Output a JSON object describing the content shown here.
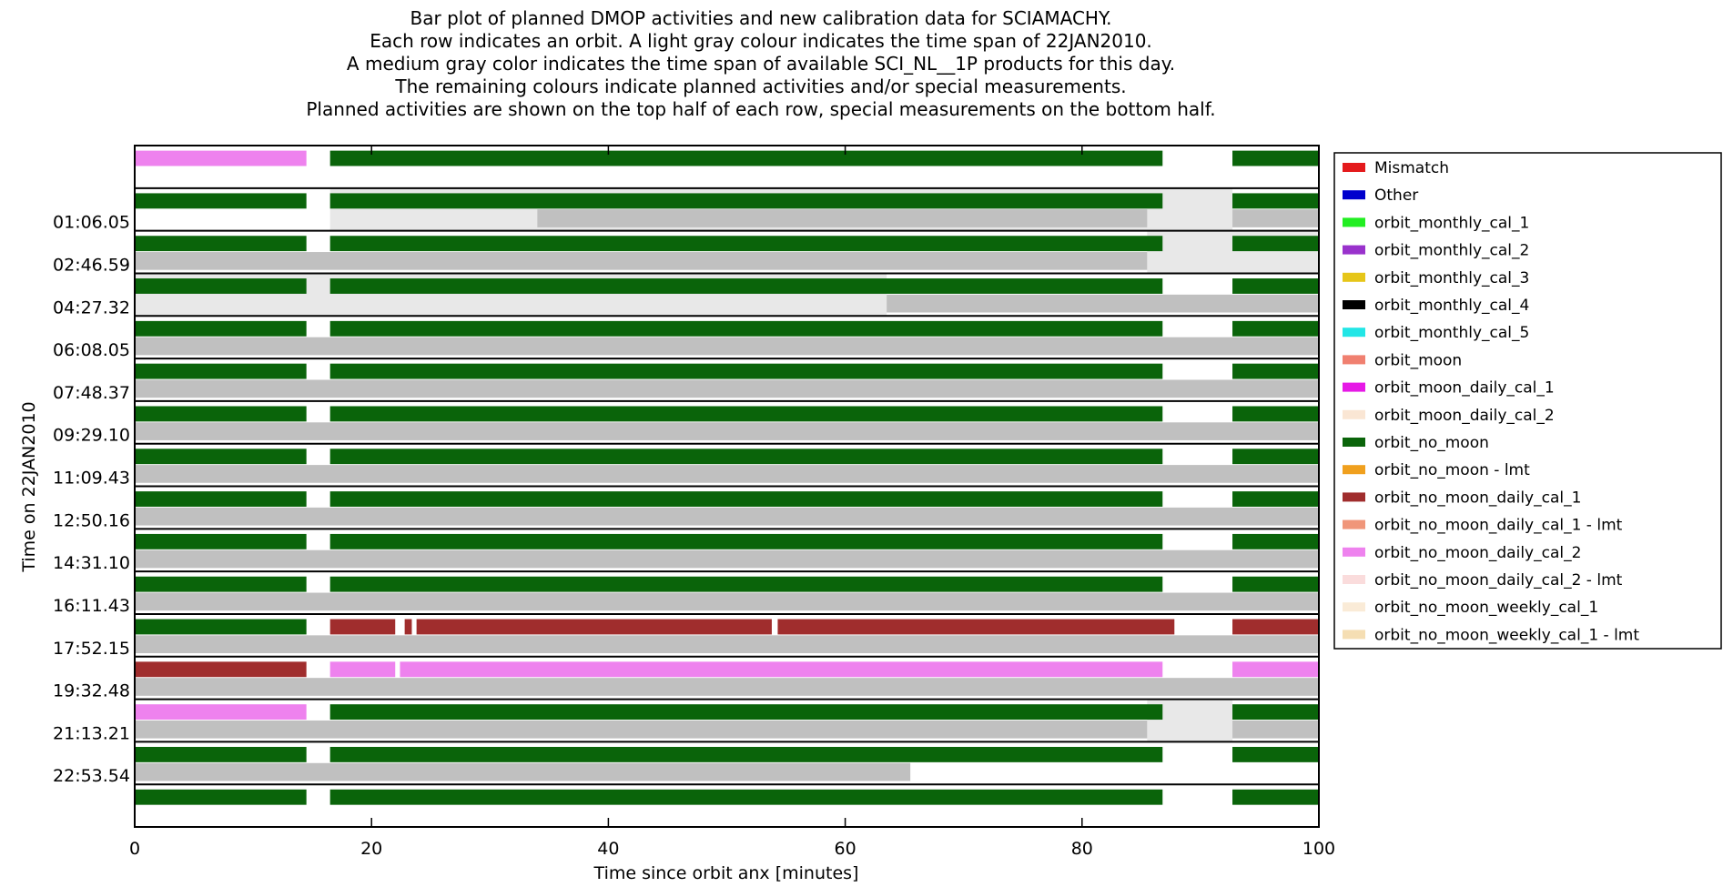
{
  "chart_data": {
    "type": "bar",
    "title_lines": [
      "Bar plot of planned DMOP activities and new calibration data for SCIAMACHY.",
      "Each row indicates an orbit. A light gray colour indicates the time span of 22JAN2010.",
      "A medium gray color indicates the time span of available SCI_NL__1P products for this day.",
      "The remaining colours indicate planned activities and/or special measurements.",
      "Planned activities are shown on the top half of each row, special measurements on the bottom half."
    ],
    "xlabel": "Time since orbit anx [minutes]",
    "ylabel": "Time on 22JAN2010",
    "xlim": [
      0,
      100
    ],
    "x_ticks": [
      "0",
      "20",
      "40",
      "60",
      "80",
      "100"
    ],
    "y_tick_labels": [
      "01:06.05",
      "02:46.59",
      "04:27.32",
      "06:08.05",
      "07:48.37",
      "09:29.10",
      "11:09.43",
      "12:50.16",
      "14:31.10",
      "16:11.43",
      "17:52.15",
      "19:32.48",
      "21:13.21",
      "22:53.54"
    ],
    "legend": [
      {
        "label": "Mismatch",
        "color": "#e41a1c"
      },
      {
        "label": "Other",
        "color": "#0000cd"
      },
      {
        "label": "orbit_monthly_cal_1",
        "color": "#22ee22"
      },
      {
        "label": "orbit_monthly_cal_2",
        "color": "#9932cc"
      },
      {
        "label": "orbit_monthly_cal_3",
        "color": "#e6c619"
      },
      {
        "label": "orbit_monthly_cal_4",
        "color": "#000000"
      },
      {
        "label": "orbit_monthly_cal_5",
        "color": "#22e6e6"
      },
      {
        "label": "orbit_moon",
        "color": "#f08070"
      },
      {
        "label": "orbit_moon_daily_cal_1",
        "color": "#e619e6"
      },
      {
        "label": "orbit_moon_daily_cal_2",
        "color": "#fae6d4"
      },
      {
        "label": "orbit_no_moon",
        "color": "#0a640a"
      },
      {
        "label": "orbit_no_moon - lmt",
        "color": "#f0a01e"
      },
      {
        "label": "orbit_no_moon_daily_cal_1",
        "color": "#a02d2d"
      },
      {
        "label": "orbit_no_moon_daily_cal_1 - lmt",
        "color": "#f0967a"
      },
      {
        "label": "orbit_no_moon_daily_cal_2",
        "color": "#ee82ee"
      },
      {
        "label": "orbit_no_moon_daily_cal_2 - lmt",
        "color": "#fadcdc"
      },
      {
        "label": "orbit_no_moon_weekly_cal_1",
        "color": "#faebd7"
      },
      {
        "label": "orbit_no_moon_weekly_cal_1 - lmt",
        "color": "#f5deb3"
      }
    ],
    "colors": {
      "light_gray": "#e8e8e8",
      "medium_gray": "#c0c0c0"
    },
    "rows": [
      {
        "top": [
          [
            "pink",
            0,
            14.5
          ],
          [
            "green",
            16.5,
            86.8
          ],
          [
            "green",
            92.7,
            100
          ]
        ],
        "light": [],
        "medium": []
      },
      {
        "top": [
          [
            "green",
            0,
            14.5
          ],
          [
            "green",
            16.5,
            86.8
          ],
          [
            "green",
            92.7,
            100
          ]
        ],
        "light": [
          [
            16.5,
            92.7
          ]
        ],
        "medium": [
          [
            34,
            85.5
          ],
          [
            92.7,
            100
          ]
        ]
      },
      {
        "top": [
          [
            "green",
            0,
            14.5
          ],
          [
            "green",
            16.5,
            86.8
          ],
          [
            "green",
            92.7,
            100
          ]
        ],
        "light": [
          [
            85.5,
            100
          ]
        ],
        "medium": [
          [
            0,
            85.5
          ]
        ]
      },
      {
        "top": [
          [
            "green",
            0,
            14.5
          ],
          [
            "green",
            16.5,
            86.8
          ],
          [
            "green",
            92.7,
            100
          ]
        ],
        "light": [
          [
            0,
            63.5
          ]
        ],
        "medium": [
          [
            63.5,
            100
          ]
        ]
      },
      {
        "top": [
          [
            "green",
            0,
            14.5
          ],
          [
            "green",
            16.5,
            86.8
          ],
          [
            "green",
            92.7,
            100
          ]
        ],
        "light": [],
        "medium": [
          [
            0,
            100
          ]
        ]
      },
      {
        "top": [
          [
            "green",
            0,
            14.5
          ],
          [
            "green",
            16.5,
            86.8
          ],
          [
            "green",
            92.7,
            100
          ]
        ],
        "light": [],
        "medium": [
          [
            0,
            100
          ]
        ]
      },
      {
        "top": [
          [
            "green",
            0,
            14.5
          ],
          [
            "green",
            16.5,
            86.8
          ],
          [
            "green",
            92.7,
            100
          ]
        ],
        "light": [],
        "medium": [
          [
            0,
            100
          ]
        ]
      },
      {
        "top": [
          [
            "green",
            0,
            14.5
          ],
          [
            "green",
            16.5,
            86.8
          ],
          [
            "green",
            92.7,
            100
          ]
        ],
        "light": [],
        "medium": [
          [
            0,
            100
          ]
        ]
      },
      {
        "top": [
          [
            "green",
            0,
            14.5
          ],
          [
            "green",
            16.5,
            86.8
          ],
          [
            "green",
            92.7,
            100
          ]
        ],
        "light": [],
        "medium": [
          [
            0,
            100
          ]
        ]
      },
      {
        "top": [
          [
            "green",
            0,
            14.5
          ],
          [
            "green",
            16.5,
            86.8
          ],
          [
            "green",
            92.7,
            100
          ]
        ],
        "light": [],
        "medium": [
          [
            0,
            100
          ]
        ]
      },
      {
        "top": [
          [
            "green",
            0,
            14.5
          ],
          [
            "green",
            16.5,
            86.8
          ],
          [
            "green",
            92.7,
            100
          ]
        ],
        "light": [],
        "medium": [
          [
            0,
            100
          ]
        ]
      },
      {
        "top": [
          [
            "green",
            0,
            14.5
          ],
          [
            "maroon",
            16.5,
            22
          ],
          [
            "maroon",
            22.8,
            23.4
          ],
          [
            "maroon",
            23.8,
            53.8
          ],
          [
            "maroon",
            54.3,
            87.8
          ],
          [
            "maroon",
            92.7,
            100
          ]
        ],
        "light": [],
        "medium": [
          [
            0,
            100
          ]
        ]
      },
      {
        "top": [
          [
            "maroon",
            0,
            14.5
          ],
          [
            "pink",
            16.5,
            22
          ],
          [
            "pink",
            22.4,
            86.8
          ],
          [
            "pink",
            92.7,
            100
          ]
        ],
        "light": [],
        "medium": [
          [
            0,
            100
          ]
        ]
      },
      {
        "top": [
          [
            "pink",
            0,
            14.5
          ],
          [
            "green",
            16.5,
            86.8
          ],
          [
            "green",
            92.7,
            100
          ]
        ],
        "light": [
          [
            85.5,
            92.7
          ]
        ],
        "medium": [
          [
            0,
            85.5
          ],
          [
            92.7,
            100
          ]
        ]
      },
      {
        "top": [
          [
            "green",
            0,
            14.5
          ],
          [
            "green",
            16.5,
            86.8
          ],
          [
            "green",
            92.7,
            100
          ]
        ],
        "light": [],
        "medium": [
          [
            0,
            65.5
          ]
        ]
      },
      {
        "top": [
          [
            "green",
            0,
            14.5
          ],
          [
            "green",
            16.5,
            86.8
          ],
          [
            "green",
            92.7,
            100
          ]
        ],
        "light": [],
        "medium": []
      }
    ]
  }
}
